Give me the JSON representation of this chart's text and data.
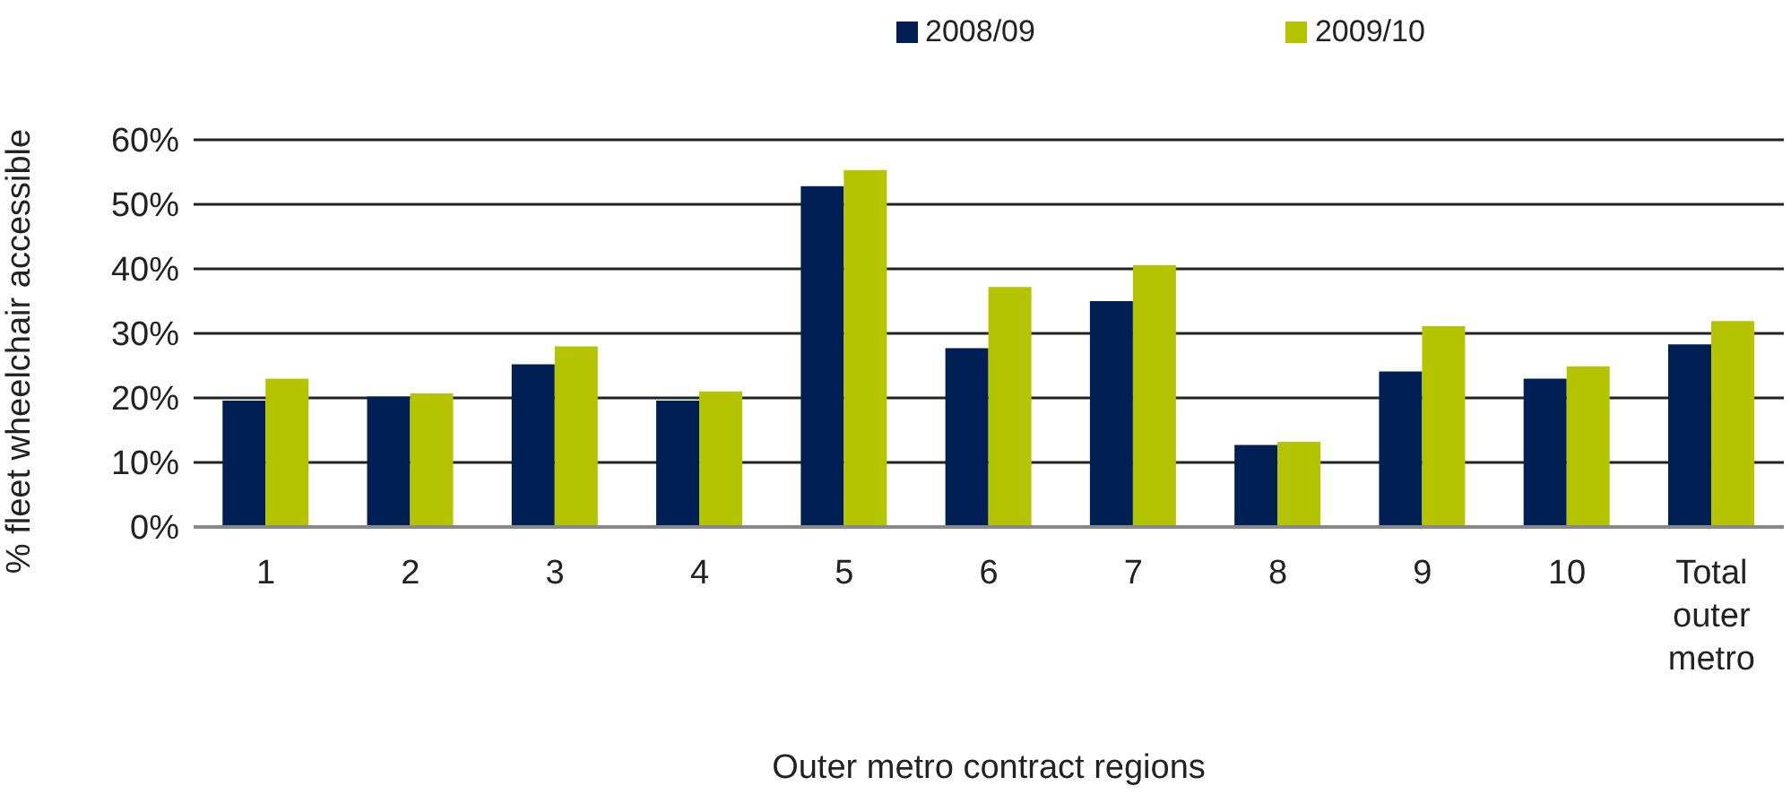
{
  "chart_data": {
    "type": "bar",
    "xlabel": "Outer metro contract regions",
    "ylabel": "% fleet wheelchair accessible",
    "categories": [
      "1",
      "2",
      "3",
      "4",
      "5",
      "6",
      "7",
      "8",
      "9",
      "10",
      "Total outer metro"
    ],
    "series": [
      {
        "name": "2008/09",
        "color": "#001f54",
        "values": [
          19.6,
          20.2,
          25.2,
          19.6,
          52.8,
          27.7,
          35.0,
          12.7,
          24.1,
          23.0,
          28.3
        ]
      },
      {
        "name": "2009/10",
        "color": "#b5c400",
        "values": [
          23.0,
          20.7,
          28.0,
          21.0,
          55.3,
          37.2,
          40.6,
          13.2,
          31.1,
          24.9,
          31.9
        ]
      }
    ],
    "ylim": [
      0,
      60
    ],
    "yticks": [
      {
        "value": 0,
        "label": "0%"
      },
      {
        "value": 10,
        "label": "10%"
      },
      {
        "value": 20,
        "label": "20%"
      },
      {
        "value": 30,
        "label": "30%"
      },
      {
        "value": 40,
        "label": "40%"
      },
      {
        "value": 50,
        "label": "50%"
      },
      {
        "value": 60,
        "label": "60%"
      }
    ],
    "grid": "y",
    "legend": "top"
  }
}
